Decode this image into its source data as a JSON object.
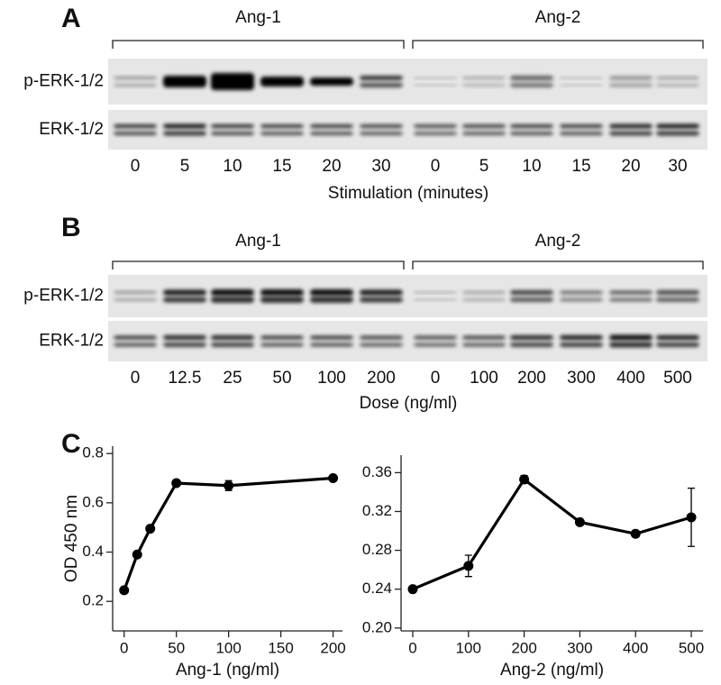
{
  "panels": [
    {
      "label": "A",
      "groups": [
        "Ang-1",
        "Ang-2"
      ],
      "rows": [
        "p-ERK-1/2",
        "ERK-1/2"
      ],
      "lanes": [
        "0",
        "5",
        "10",
        "15",
        "20",
        "30",
        "0",
        "5",
        "10",
        "15",
        "20",
        "30"
      ],
      "xlabel": "Stimulation (minutes)"
    },
    {
      "label": "B",
      "groups": [
        "Ang-1",
        "Ang-2"
      ],
      "rows": [
        "p-ERK-1/2",
        "ERK-1/2"
      ],
      "lanes": [
        "0",
        "12.5",
        "25",
        "50",
        "100",
        "200",
        "0",
        "100",
        "200",
        "300",
        "400",
        "500"
      ],
      "xlabel": "Dose (ng/ml)"
    }
  ],
  "panel_c_label": "C",
  "chart_data": [
    {
      "type": "line",
      "x_label": "Ang-1 (ng/ml)",
      "y_label": "OD 450 nm",
      "color": "#000000",
      "x": [
        0,
        12.5,
        25,
        50,
        100,
        200
      ],
      "values": [
        0.245,
        0.39,
        0.495,
        0.68,
        0.67,
        0.7
      ],
      "errors": [
        0.004,
        0.005,
        0.005,
        0.005,
        0.02,
        0.005
      ],
      "xlim": [
        -11,
        209
      ],
      "ylim": [
        0.08,
        0.83
      ],
      "xticks": [
        0,
        50,
        100,
        150,
        200
      ],
      "yticks": [
        0.2,
        0.4,
        0.6,
        0.8
      ]
    },
    {
      "type": "line",
      "x_label": "Ang-2 (ng/ml)",
      "color": "#000000",
      "x": [
        0,
        100,
        200,
        300,
        400,
        500
      ],
      "values": [
        0.24,
        0.264,
        0.353,
        0.309,
        0.297,
        0.314
      ],
      "errors": [
        0.002,
        0.011,
        0.004,
        0.003,
        0.003,
        0.03
      ],
      "xlim": [
        -21,
        521
      ],
      "ylim": [
        0.197,
        0.378
      ],
      "xticks": [
        0,
        100,
        200,
        300,
        400,
        500
      ],
      "yticks": [
        {
          "value": 0.2,
          "label": "0.20"
        },
        {
          "value": 0.24,
          "label": "0.24"
        },
        {
          "value": 0.28,
          "label": "0.28"
        },
        {
          "value": 0.32,
          "label": "0.32"
        },
        {
          "value": 0.36,
          "label": "0.36"
        }
      ]
    }
  ]
}
